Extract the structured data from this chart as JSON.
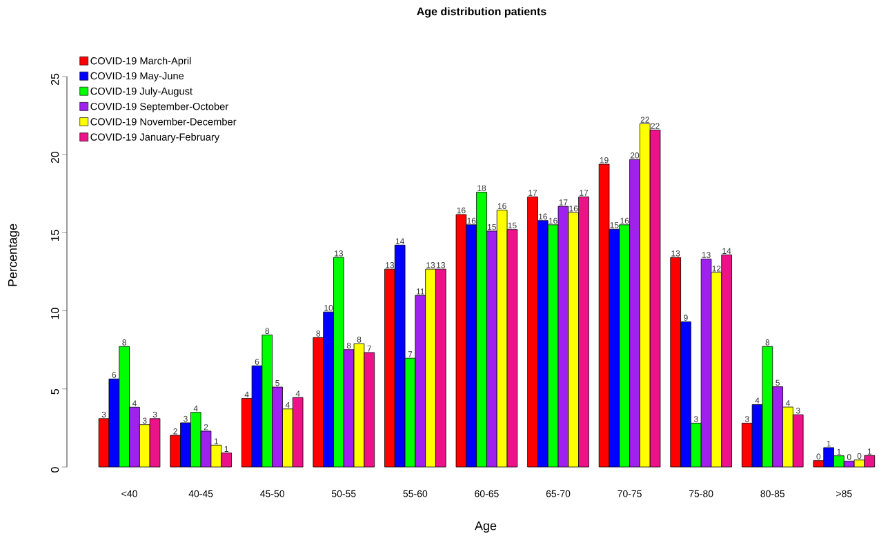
{
  "chart_data": {
    "type": "bar",
    "title": "Age distribution patients",
    "xlabel": "Age",
    "ylabel": "Percentage",
    "categories": [
      "<40",
      "40-45",
      "45-50",
      "50-55",
      "55-60",
      "60-65",
      "65-70",
      "70-75",
      "75-80",
      "80-85",
      ">85"
    ],
    "ylim": [
      0,
      25
    ],
    "yticks": [
      0,
      5,
      10,
      15,
      20,
      25
    ],
    "legend": "top left",
    "series": [
      {
        "name": "COVID-19 March-April",
        "color": "#ff0000",
        "values": [
          3.1,
          2.03,
          4.39,
          8.29,
          12.67,
          16.17,
          17.3,
          19.39,
          13.42,
          2.81,
          0.41
        ],
        "value_labels": [
          "3",
          "2",
          "4",
          "8",
          "13",
          "16",
          "17",
          "19",
          "13",
          "3",
          "0"
        ]
      },
      {
        "name": "COVID-19 May-June",
        "color": "#0000ff",
        "values": [
          5.64,
          2.83,
          6.48,
          9.93,
          14.21,
          15.51,
          15.78,
          15.23,
          9.3,
          4.0,
          1.24
        ],
        "value_labels": [
          "6",
          "3",
          "6",
          "10",
          "14",
          "16",
          "16",
          "15",
          "9",
          "4",
          "1"
        ]
      },
      {
        "name": "COVID-19 July-August",
        "color": "#00ff00",
        "values": [
          7.72,
          3.5,
          8.45,
          13.42,
          6.97,
          17.6,
          15.51,
          15.51,
          2.81,
          7.72,
          0.72
        ],
        "value_labels": [
          "8",
          "4",
          "8",
          "13",
          "7",
          "18",
          "16",
          "16",
          "3",
          "8",
          "1"
        ]
      },
      {
        "name": "COVID-19 September-October",
        "color": "#a020f0",
        "values": [
          3.83,
          2.3,
          5.12,
          7.52,
          10.99,
          15.11,
          16.69,
          19.69,
          13.32,
          5.14,
          0.38
        ],
        "value_labels": [
          "4",
          "2",
          "5",
          "8",
          "11",
          "15",
          "17",
          "20",
          "13",
          "5",
          "0"
        ]
      },
      {
        "name": "COVID-19 November-December",
        "color": "#ffff00",
        "values": [
          2.71,
          1.4,
          3.72,
          7.9,
          12.67,
          16.45,
          16.29,
          21.98,
          12.45,
          3.84,
          0.45
        ],
        "value_labels": [
          "3",
          "1",
          "4",
          "8",
          "13",
          "16",
          "16",
          "22",
          "12",
          "4",
          "0"
        ]
      },
      {
        "name": "COVID-19 January-February",
        "color": "#ee1289",
        "values": [
          3.1,
          0.9,
          4.45,
          7.33,
          12.67,
          15.21,
          17.3,
          21.58,
          13.58,
          3.35,
          0.74
        ],
        "value_labels": [
          "3",
          "1",
          "4",
          "7",
          "13",
          "15",
          "17",
          "22",
          "14",
          "3",
          "1"
        ]
      }
    ]
  }
}
